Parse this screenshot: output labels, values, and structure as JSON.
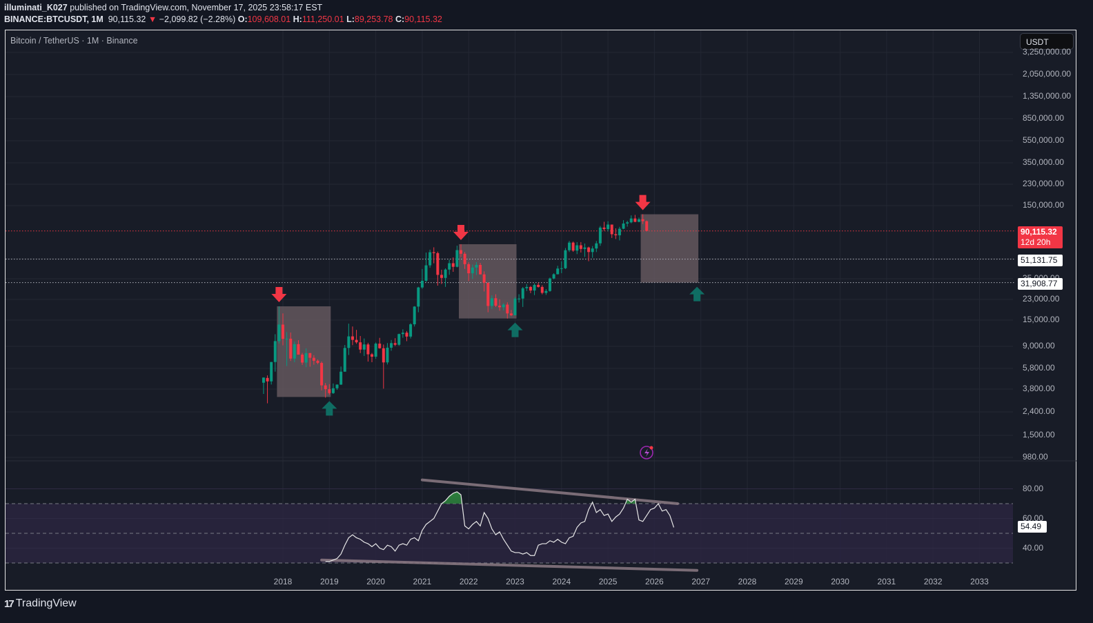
{
  "header": {
    "author": "illuminati_K027",
    "published_text": "published on TradingView.com, November 17, 2025 23:58:17 EST",
    "symbol": "BINANCE:BTCUSDT, 1M",
    "last": "90,115.32",
    "change_arrow": "▼",
    "change": "−2,099.82 (−2.28%)",
    "o_label": "O:",
    "o_value": "109,608.01",
    "h_label": "H:",
    "h_value": "111,250.01",
    "l_label": "L:",
    "l_value": "89,253.78",
    "c_label": "C:",
    "c_value": "90,115.32"
  },
  "chart": {
    "symbol_title": "Bitcoin / TetherUS · 1M · Binance",
    "currency_button": "USDT",
    "price_tag": {
      "value": "90,115.32",
      "countdown": "12d 20h"
    },
    "level_tags": [
      "51,131.75",
      "31,908.77"
    ],
    "rsi_tag": "54.49",
    "logo_text": "TradingView",
    "logo_mark": "17"
  },
  "colors": {
    "up": "#089981",
    "down": "#f23645",
    "box": "#6e5f65",
    "rsi_band": "#2a2540",
    "trendline": "#8c7a84",
    "arrow_up": "#0f6d63"
  },
  "chart_data": {
    "type": "candlestick",
    "title": "Bitcoin / TetherUS · 1M · Binance",
    "scale": "log",
    "y_ticks": [
      "3,250,000.00",
      "2,050,000.00",
      "1,350,000.00",
      "850,000.00",
      "550,000.00",
      "350,000.00",
      "230,000.00",
      "150,000.00",
      "55,000.00",
      "35,000.00",
      "23,000.00",
      "15,000.00",
      "9,000.00",
      "5,800.00",
      "3,800.00",
      "2,400.00",
      "1,500.00",
      "980.00"
    ],
    "x_ticks": [
      "2018",
      "2019",
      "2020",
      "2021",
      "2022",
      "2023",
      "2024",
      "2025",
      "2026",
      "2027",
      "2028",
      "2029",
      "2030",
      "2031",
      "2032",
      "2033"
    ],
    "horizontal_levels": [
      {
        "price": 90115.32,
        "style": "dotted",
        "color": "#f23645"
      },
      {
        "price": 51131.75,
        "style": "dotted",
        "color": "#b2b5be"
      },
      {
        "price": 31908.77,
        "style": "dotted",
        "color": "#b2b5be"
      }
    ],
    "boxes": [
      {
        "from": "2017-12",
        "to": "2019-01",
        "top": 19800,
        "bottom": 3200
      },
      {
        "from": "2021-11",
        "to": "2023-01",
        "top": 69000,
        "bottom": 15500
      },
      {
        "from": "2025-10",
        "to": "2026-12",
        "top": 126000,
        "bottom": 31908
      }
    ],
    "markers": [
      {
        "type": "down-arrow",
        "date": "2017-12"
      },
      {
        "type": "up-arrow",
        "date": "2019-01"
      },
      {
        "type": "down-arrow",
        "date": "2021-11"
      },
      {
        "type": "up-arrow",
        "date": "2023-01"
      },
      {
        "type": "down-arrow",
        "date": "2025-10"
      },
      {
        "type": "up-arrow",
        "date": "2026-12"
      }
    ],
    "start": "2017-08",
    "ohlc": [
      [
        4261,
        4745,
        3400,
        4724
      ],
      [
        4690,
        4939,
        2817,
        4378
      ],
      [
        4378,
        6470,
        4110,
        6463
      ],
      [
        6463,
        11300,
        5325,
        9838
      ],
      [
        9838,
        19798,
        9380,
        13716
      ],
      [
        13716,
        17176,
        9035,
        10285
      ],
      [
        10285,
        11786,
        5968,
        10326
      ],
      [
        10326,
        11700,
        6600,
        6923
      ],
      [
        6923,
        9759,
        6430,
        9246
      ],
      [
        9246,
        10020,
        8342,
        7494
      ],
      [
        7494,
        7764,
        6100,
        6391
      ],
      [
        6391,
        8507,
        5826,
        7730
      ],
      [
        7730,
        7760,
        5880,
        7033
      ],
      [
        7033,
        7410,
        6123,
        6625
      ],
      [
        6625,
        6800,
        6180,
        6343
      ],
      [
        6343,
        6535,
        3652,
        4040
      ],
      [
        4040,
        4236,
        3156,
        3742
      ],
      [
        3742,
        4140,
        3349,
        3458
      ],
      [
        3458,
        4198,
        3400,
        3811
      ],
      [
        3811,
        4120,
        3692,
        4103
      ],
      [
        4103,
        5900,
        4080,
        5320
      ],
      [
        5320,
        9100,
        5320,
        8574
      ],
      [
        8574,
        13970,
        7440,
        10817
      ],
      [
        10817,
        13200,
        9070,
        10086
      ],
      [
        10086,
        12325,
        9320,
        9600
      ],
      [
        9600,
        10900,
        7733,
        8294
      ],
      [
        8294,
        10370,
        7300,
        9199
      ],
      [
        9199,
        9510,
        6515,
        7546
      ],
      [
        7546,
        7750,
        6435,
        7193
      ],
      [
        7193,
        9575,
        6900,
        9350
      ],
      [
        9350,
        10500,
        8450,
        8523
      ],
      [
        8523,
        9188,
        3782,
        6410
      ],
      [
        6410,
        9460,
        6150,
        8620
      ],
      [
        8620,
        10067,
        8100,
        9448
      ],
      [
        9448,
        10430,
        8910,
        9138
      ],
      [
        9138,
        11440,
        8960,
        11335
      ],
      [
        11335,
        12468,
        10517,
        11649
      ],
      [
        11649,
        12050,
        9825,
        10776
      ],
      [
        10776,
        14100,
        10370,
        13792
      ],
      [
        13792,
        19863,
        13195,
        19695
      ],
      [
        19695,
        29300,
        17570,
        28923
      ],
      [
        28923,
        41950,
        28130,
        33092
      ],
      [
        33092,
        58352,
        32296,
        45135
      ],
      [
        45135,
        61844,
        43000,
        58740
      ],
      [
        58740,
        64854,
        47000,
        57694
      ],
      [
        57694,
        59500,
        30000,
        37253
      ],
      [
        37253,
        41330,
        31000,
        35045
      ],
      [
        35045,
        42448,
        29278,
        41461
      ],
      [
        41461,
        50500,
        37332,
        47100
      ],
      [
        47100,
        52920,
        39600,
        43824
      ],
      [
        43824,
        67000,
        43283,
        61300
      ],
      [
        61300,
        69000,
        53256,
        56950
      ],
      [
        56950,
        59053,
        42000,
        46216
      ],
      [
        46216,
        47990,
        32917,
        38466
      ],
      [
        38466,
        45821,
        34322,
        43160
      ],
      [
        43160,
        48189,
        37155,
        45510
      ],
      [
        45510,
        47444,
        37578,
        37630
      ],
      [
        37630,
        40023,
        26700,
        31801
      ],
      [
        31801,
        31957,
        17567,
        19942
      ],
      [
        19942,
        24668,
        18781,
        23293
      ],
      [
        23293,
        25214,
        19520,
        20050
      ],
      [
        20050,
        22799,
        18125,
        19423
      ],
      [
        19423,
        21085,
        18190,
        20490
      ],
      [
        20490,
        21446,
        15476,
        17164
      ],
      [
        17164,
        18387,
        16256,
        16542
      ],
      [
        16542,
        23960,
        16500,
        23125
      ],
      [
        23125,
        25250,
        21351,
        23141
      ],
      [
        23141,
        29184,
        19549,
        28465
      ],
      [
        28465,
        31000,
        26942,
        29233
      ],
      [
        29233,
        29820,
        25811,
        27210
      ],
      [
        27210,
        31431,
        24800,
        30472
      ],
      [
        30472,
        31804,
        28861,
        29232
      ],
      [
        29232,
        30244,
        25166,
        25940
      ],
      [
        25940,
        28000,
        24900,
        26962
      ],
      [
        26962,
        35280,
        26538,
        34640
      ],
      [
        34640,
        38450,
        34097,
        37723
      ],
      [
        37723,
        44700,
        37615,
        42283
      ],
      [
        42283,
        48969,
        38555,
        42580
      ],
      [
        42580,
        63913,
        41884,
        61130
      ],
      [
        61130,
        73777,
        59005,
        71280
      ],
      [
        71280,
        72797,
        59191,
        60672
      ],
      [
        60672,
        71979,
        56552,
        67540
      ],
      [
        67540,
        71997,
        58402,
        62772
      ],
      [
        62772,
        70016,
        53485,
        64628
      ],
      [
        64628,
        65659,
        49000,
        58974
      ],
      [
        58974,
        66498,
        52550,
        63328
      ],
      [
        63328,
        73620,
        58946,
        70215
      ],
      [
        70215,
        99588,
        66835,
        96407
      ],
      [
        96407,
        108353,
        90500,
        93576
      ],
      [
        93576,
        109588,
        89256,
        102429
      ],
      [
        102429,
        102500,
        78258,
        84350
      ],
      [
        84350,
        95000,
        76606,
        82550
      ],
      [
        82550,
        97900,
        74508,
        94172
      ],
      [
        94172,
        111980,
        93346,
        104591
      ],
      [
        104591,
        110530,
        98200,
        107135
      ],
      [
        107135,
        123218,
        105100,
        115764
      ],
      [
        115764,
        124474,
        107350,
        108246
      ],
      [
        108246,
        117900,
        107255,
        114049
      ],
      [
        114049,
        126199,
        103528,
        109608
      ],
      [
        109608,
        111250,
        89253,
        90115
      ]
    ],
    "rsi": {
      "label_ticks": [
        "80.00",
        "60.00",
        "40.00"
      ],
      "band": [
        30,
        70
      ],
      "last": 54.49,
      "start": "2018-12",
      "values": [
        31,
        31,
        32,
        33,
        36,
        42,
        47,
        49,
        47,
        46,
        44,
        43,
        41,
        43,
        40,
        39,
        42,
        41,
        38,
        42,
        43,
        42,
        46,
        47,
        45,
        52,
        56,
        58,
        60,
        65,
        70,
        72,
        75,
        77,
        78,
        76,
        55,
        53,
        56,
        58,
        55,
        64,
        60,
        53,
        49,
        51,
        46,
        42,
        38,
        37,
        37,
        36,
        37,
        35,
        35,
        42,
        43,
        43,
        45,
        44,
        46,
        44,
        43,
        47,
        48,
        54,
        57,
        58,
        66,
        71,
        64,
        66,
        62,
        63,
        58,
        61,
        63,
        67,
        73,
        71,
        73,
        59,
        58,
        62,
        66,
        67,
        70,
        65,
        66,
        62,
        54
      ],
      "upper_trendline": {
        "from": [
          "2021-01",
          86
        ],
        "to": [
          "2026-07",
          70
        ]
      },
      "lower_trendline": {
        "from": [
          "2018-11",
          32
        ],
        "to": [
          "2026-12",
          25
        ]
      }
    }
  }
}
